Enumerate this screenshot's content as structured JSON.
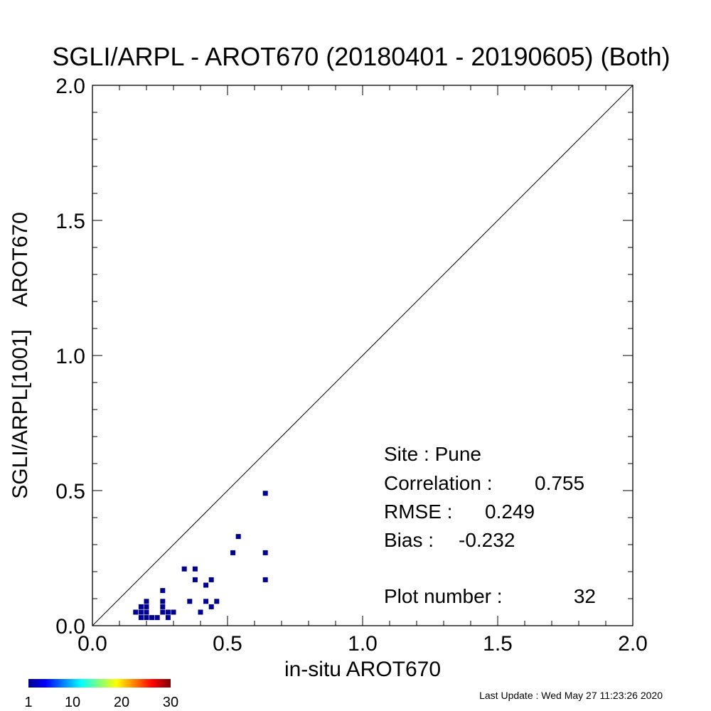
{
  "chart_data": {
    "type": "scatter",
    "title": "SGLI/ARPL - AROT670 (20180401 - 20190605) (Both)",
    "xlabel": "in-situ AROT670",
    "ylabel": "SGLI/ARPL[1001]    AROT670",
    "xlim": [
      0,
      2
    ],
    "ylim": [
      0,
      2
    ],
    "x_ticks": [
      "0.0",
      "0.5",
      "1.0",
      "1.5",
      "2.0"
    ],
    "y_ticks": [
      "0.0",
      "0.5",
      "1.0",
      "1.5",
      "2.0"
    ],
    "one_to_one_line": true,
    "point_color": "#00008f",
    "points": [
      {
        "x": 0.64,
        "y": 0.49
      },
      {
        "x": 0.54,
        "y": 0.33
      },
      {
        "x": 0.52,
        "y": 0.27
      },
      {
        "x": 0.64,
        "y": 0.27
      },
      {
        "x": 0.64,
        "y": 0.17
      },
      {
        "x": 0.34,
        "y": 0.21
      },
      {
        "x": 0.38,
        "y": 0.21
      },
      {
        "x": 0.38,
        "y": 0.17
      },
      {
        "x": 0.42,
        "y": 0.15
      },
      {
        "x": 0.44,
        "y": 0.17
      },
      {
        "x": 0.26,
        "y": 0.13
      },
      {
        "x": 0.36,
        "y": 0.09
      },
      {
        "x": 0.4,
        "y": 0.05
      },
      {
        "x": 0.42,
        "y": 0.09
      },
      {
        "x": 0.44,
        "y": 0.07
      },
      {
        "x": 0.46,
        "y": 0.09
      },
      {
        "x": 0.2,
        "y": 0.09
      },
      {
        "x": 0.18,
        "y": 0.07
      },
      {
        "x": 0.2,
        "y": 0.07
      },
      {
        "x": 0.16,
        "y": 0.05
      },
      {
        "x": 0.18,
        "y": 0.05
      },
      {
        "x": 0.2,
        "y": 0.05
      },
      {
        "x": 0.18,
        "y": 0.03
      },
      {
        "x": 0.2,
        "y": 0.03
      },
      {
        "x": 0.24,
        "y": 0.03
      },
      {
        "x": 0.26,
        "y": 0.09
      },
      {
        "x": 0.26,
        "y": 0.07
      },
      {
        "x": 0.26,
        "y": 0.05
      },
      {
        "x": 0.28,
        "y": 0.05
      },
      {
        "x": 0.28,
        "y": 0.03
      },
      {
        "x": 0.3,
        "y": 0.05
      },
      {
        "x": 0.22,
        "y": 0.03
      }
    ],
    "colorbar": {
      "tick_labels": [
        "1",
        "10",
        "20",
        "30"
      ],
      "tick_values": [
        1,
        10,
        20,
        30
      ],
      "range": [
        1,
        30
      ],
      "stops": [
        "#00008f",
        "#0000ff",
        "#00ffff",
        "#ffff00",
        "#ff0000",
        "#800000"
      ]
    }
  },
  "stats": {
    "site": "Site : Pune",
    "correlation_label": "Correlation :",
    "correlation_value": "0.755",
    "rmse_label": "RMSE :",
    "rmse_value": "0.249",
    "bias_label": "Bias :",
    "bias_value": "-0.232",
    "plot_number_label": "Plot number :",
    "plot_number_value": "32"
  },
  "footer": {
    "last_update": "Last Update : Wed May 27 11:23:26 2020"
  }
}
